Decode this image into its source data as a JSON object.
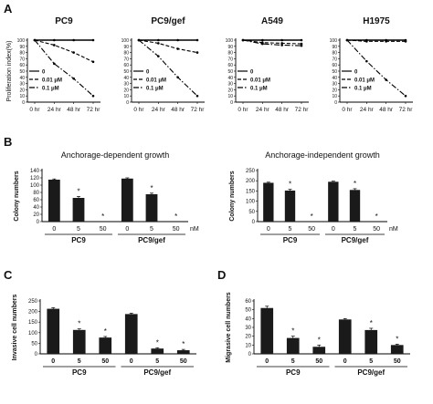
{
  "chart_data": [
    {
      "panel": "A",
      "type": "line",
      "title": "PC9",
      "ylabel": "Proliferation index(%)",
      "x": [
        "0 hr",
        "24 hr",
        "48 hr",
        "72 hr"
      ],
      "ylim": [
        0,
        100
      ],
      "yticks": [
        0,
        10,
        20,
        30,
        40,
        50,
        60,
        70,
        80,
        90,
        100
      ],
      "legend": [
        "0",
        "0.01 μM",
        "0.1 μM"
      ],
      "series": [
        {
          "name": "0",
          "dash": "solid",
          "values": [
            100,
            100,
            100,
            100
          ]
        },
        {
          "name": "0.01 μM",
          "dash": "dashed",
          "values": [
            100,
            92,
            80,
            65
          ]
        },
        {
          "name": "0.1 μM",
          "dash": "dashdot",
          "values": [
            100,
            62,
            38,
            10
          ]
        }
      ]
    },
    {
      "panel": "A",
      "type": "line",
      "title": "PC9/gef",
      "x": [
        "0 hr",
        "24 hr",
        "48 hr",
        "72 hr"
      ],
      "ylim": [
        0,
        100
      ],
      "yticks": [
        0,
        10,
        20,
        30,
        40,
        50,
        60,
        70,
        80,
        90,
        100
      ],
      "legend": [
        "0",
        "0.01 μM",
        "0.1 μM"
      ],
      "series": [
        {
          "name": "0",
          "dash": "solid",
          "values": [
            100,
            100,
            100,
            100
          ]
        },
        {
          "name": "0.01 μM",
          "dash": "dashed",
          "values": [
            100,
            95,
            86,
            80
          ]
        },
        {
          "name": "0.1 μM",
          "dash": "dashdot",
          "values": [
            100,
            74,
            40,
            10
          ]
        }
      ]
    },
    {
      "panel": "A",
      "type": "line",
      "title": "A549",
      "x": [
        "0 hr",
        "24 hr",
        "48 hr",
        "72 hr"
      ],
      "ylim": [
        0,
        100
      ],
      "yticks": [
        0,
        10,
        20,
        30,
        40,
        50,
        60,
        70,
        80,
        90,
        100
      ],
      "legend": [
        "0",
        "0.01 μM",
        "0.1 μM"
      ],
      "series": [
        {
          "name": "0",
          "dash": "solid",
          "values": [
            100,
            100,
            100,
            100
          ]
        },
        {
          "name": "0.01 μM",
          "dash": "dashed",
          "values": [
            100,
            96,
            95,
            94
          ]
        },
        {
          "name": "0.1 μM",
          "dash": "dashdot",
          "values": [
            100,
            94,
            92,
            91
          ]
        }
      ]
    },
    {
      "panel": "A",
      "type": "line",
      "title": "H1975",
      "x": [
        "0 hr",
        "24 hr",
        "48 hr",
        "72 hr"
      ],
      "ylim": [
        0,
        100
      ],
      "yticks": [
        0,
        10,
        20,
        30,
        40,
        50,
        60,
        70,
        80,
        90,
        100
      ],
      "legend": [
        "0",
        "0.01 μM",
        "0.1 μM"
      ],
      "series": [
        {
          "name": "0",
          "dash": "solid",
          "values": [
            100,
            100,
            100,
            100
          ]
        },
        {
          "name": "0.01 μM",
          "dash": "dashed",
          "values": [
            100,
            98,
            98,
            98
          ]
        },
        {
          "name": "0.1 μM",
          "dash": "dashdot",
          "values": [
            100,
            66,
            36,
            10
          ]
        }
      ]
    },
    {
      "panel": "B",
      "type": "bar",
      "title": "Anchorage-dependent growth",
      "ylabel": "Colony numbers",
      "ylim": [
        0,
        140
      ],
      "yticks": [
        0,
        20,
        40,
        60,
        80,
        100,
        120,
        140
      ],
      "categories": [
        "0",
        "5",
        "50",
        "0",
        "5",
        "50"
      ],
      "groups": [
        "PC9",
        "PC9/gef"
      ],
      "unit": "nM",
      "values": [
        115,
        65,
        0,
        118,
        75,
        0
      ],
      "errors": [
        2,
        4,
        0,
        2,
        3,
        0
      ],
      "significant": [
        false,
        true,
        true,
        false,
        true,
        true
      ]
    },
    {
      "panel": "B",
      "type": "bar",
      "title": "Anchorage-independent growth",
      "ylabel": "Colony numbers",
      "ylim": [
        0,
        250
      ],
      "yticks": [
        0,
        50,
        100,
        150,
        200,
        250
      ],
      "categories": [
        "0",
        "5",
        "50",
        "0",
        "5",
        "50"
      ],
      "groups": [
        "PC9",
        "PC9/gef"
      ],
      "unit": "nM",
      "values": [
        190,
        152,
        0,
        195,
        155,
        0
      ],
      "errors": [
        3,
        6,
        0,
        3,
        6,
        0
      ],
      "significant": [
        false,
        true,
        true,
        false,
        true,
        true
      ]
    },
    {
      "panel": "C",
      "type": "bar",
      "ylabel": "Invasive cell numbers",
      "ylim": [
        0,
        250
      ],
      "yticks": [
        0,
        50,
        100,
        150,
        200,
        250
      ],
      "categories": [
        "0",
        "5",
        "50",
        "0",
        "5",
        "50"
      ],
      "groups": [
        "PC9",
        "PC9/gef"
      ],
      "values": [
        213,
        113,
        77,
        188,
        25,
        17
      ],
      "errors": [
        5,
        5,
        5,
        4,
        4,
        4
      ],
      "significant": [
        false,
        true,
        true,
        false,
        true,
        true
      ]
    },
    {
      "panel": "D",
      "type": "bar",
      "ylabel": "Migrasive cell numbers",
      "ylim": [
        0,
        60
      ],
      "yticks": [
        0,
        10,
        20,
        30,
        40,
        50,
        60
      ],
      "categories": [
        "0",
        "5",
        "50",
        "0",
        "5",
        "50"
      ],
      "groups": [
        "PC9",
        "PC9/gef"
      ],
      "values": [
        52,
        18,
        8,
        39,
        27,
        10
      ],
      "errors": [
        2,
        2,
        2,
        1,
        2,
        1
      ],
      "significant": [
        false,
        true,
        true,
        false,
        true,
        true
      ]
    }
  ],
  "panel_labels": [
    "A",
    "B",
    "C",
    "D"
  ],
  "colors": {
    "bar": "#1a1a1a",
    "axis": "#000000",
    "text": "#111111"
  }
}
